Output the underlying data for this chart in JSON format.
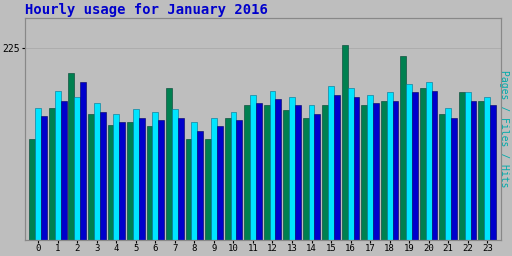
{
  "title": "Hourly usage for January 2016",
  "ylabel_right": "Pages / Files / Hits",
  "hours": [
    0,
    1,
    2,
    3,
    4,
    5,
    6,
    7,
    8,
    9,
    10,
    11,
    12,
    13,
    14,
    15,
    16,
    17,
    18,
    19,
    20,
    21,
    22,
    23
  ],
  "pages": [
    118,
    155,
    195,
    148,
    135,
    138,
    133,
    178,
    118,
    118,
    143,
    158,
    158,
    152,
    143,
    158,
    228,
    158,
    163,
    215,
    178,
    148,
    173,
    163
  ],
  "files": [
    155,
    175,
    168,
    160,
    148,
    153,
    150,
    153,
    138,
    143,
    150,
    170,
    175,
    168,
    158,
    180,
    178,
    170,
    173,
    183,
    185,
    155,
    173,
    168
  ],
  "hits": [
    145,
    163,
    185,
    150,
    138,
    143,
    140,
    143,
    128,
    133,
    140,
    160,
    165,
    158,
    148,
    170,
    168,
    160,
    163,
    173,
    175,
    143,
    163,
    158
  ],
  "ylim": [
    0,
    260
  ],
  "ytick": 225,
  "bar_color_pages": "#008050",
  "bar_color_files": "#00E5FF",
  "bar_color_hits": "#0000CC",
  "background_color": "#BEBEBE",
  "plot_bg_color": "#BEBEBE",
  "title_color": "#0000CC",
  "ylabel_color": "#00AAAA",
  "grid_color": "#AAAAAA",
  "title_fontsize": 10,
  "bar_width": 0.3
}
